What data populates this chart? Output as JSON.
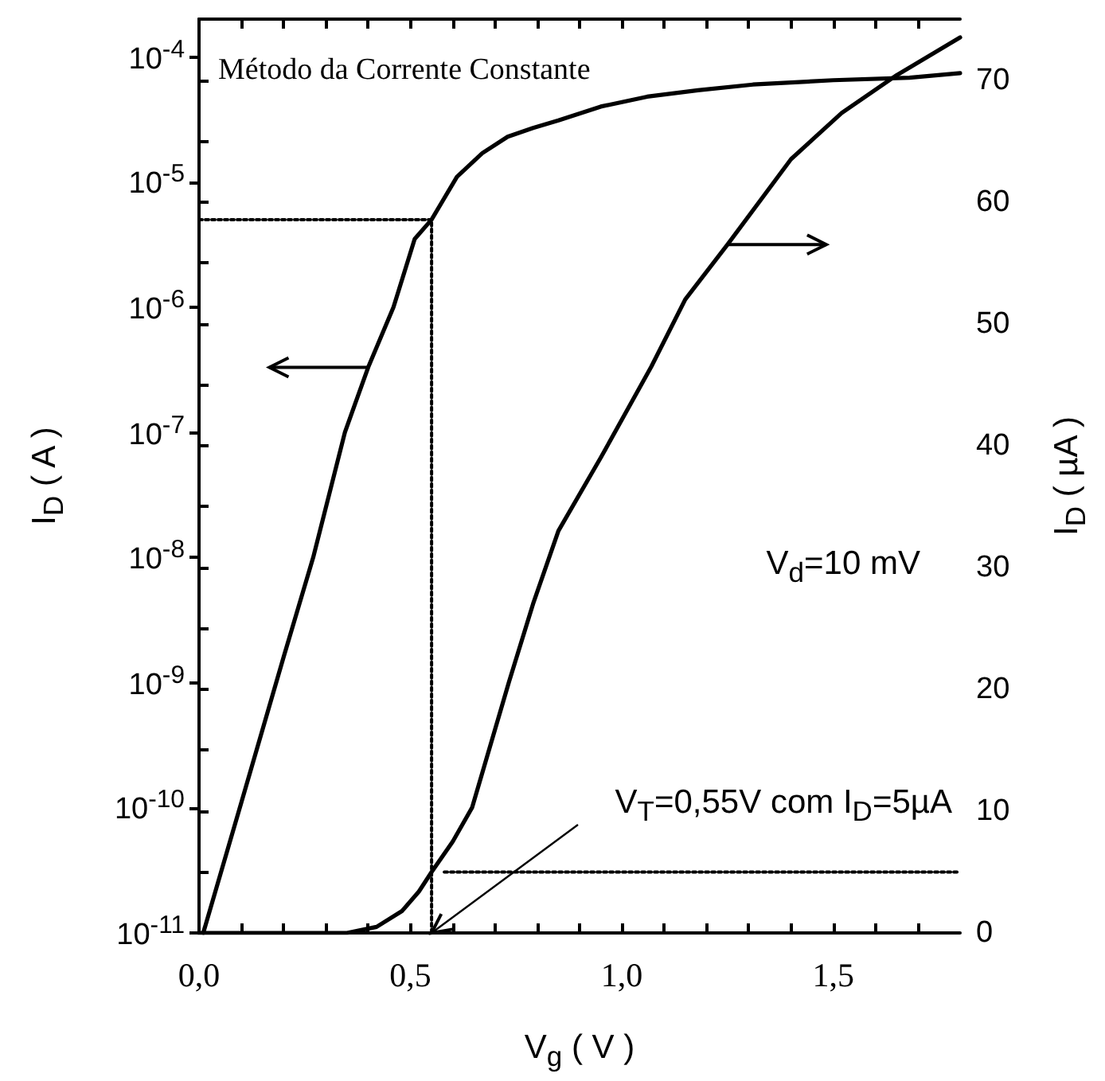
{
  "chart_data": {
    "type": "line",
    "xlabel": "V$_{g}$ ( V )",
    "ylabel": "I$_{D}$ ( A )",
    "y2label": "I$_{D}$ ( µA )",
    "annotations": [
      "Método da Corrente Constante",
      "V$_{d}$=10 mV",
      {
        "text": "V$_{T}$=0,55V com I$_{D}$=5µA",
        "x": 0.55,
        "y": 1e-11
      }
    ],
    "xlim": [
      0,
      1.8
    ],
    "xticks": [
      {
        "value": 0,
        "label": "0,0"
      },
      {
        "value": 0.1,
        "label": null
      },
      {
        "value": 0.2,
        "label": null
      },
      {
        "value": 0.3,
        "label": null
      },
      {
        "value": 0.4,
        "label": null
      },
      {
        "value": 0.5,
        "label": "0,5"
      },
      {
        "value": 0.6,
        "label": null
      },
      {
        "value": 0.7,
        "label": null
      },
      {
        "value": 0.8,
        "label": null
      },
      {
        "value": 0.9,
        "label": null
      },
      {
        "value": 1.0,
        "label": "1,0"
      },
      {
        "value": 1.1,
        "label": null
      },
      {
        "value": 1.2,
        "label": null
      },
      {
        "value": 1.3,
        "label": null
      },
      {
        "value": 1.4,
        "label": null
      },
      {
        "value": 1.5,
        "label": "1,5"
      },
      {
        "value": 1.6,
        "label": null
      },
      {
        "value": 1.7,
        "label": null
      }
    ],
    "ylim": [
      1e-11,
      0.0002
    ],
    "log": "y",
    "yticks": [
      {
        "value": 1e-11,
        "label": "10$^{-11}$"
      },
      {
        "value": 1e-10,
        "label": "10$^{-10}$"
      },
      {
        "value": 1e-09,
        "label": "10$^{-9}$"
      },
      {
        "value": 1e-08,
        "label": "10$^{-8}$"
      },
      {
        "value": 1e-07,
        "label": "10$^{-7}$"
      },
      {
        "value": 1e-06,
        "label": "10$^{-6}$"
      },
      {
        "value": 1e-05,
        "label": "10$^{-5}$"
      },
      {
        "value": 0.0001,
        "label": "10$^{-4}$"
      }
    ],
    "y2lim": [
      0,
      75
    ],
    "y2ticks": [
      0,
      {
        "value": 5,
        "label": null
      },
      10,
      {
        "value": 15,
        "label": null
      },
      20,
      {
        "value": 25,
        "label": null
      },
      30,
      {
        "value": 35,
        "label": null
      },
      40,
      {
        "value": 45,
        "label": null
      },
      50,
      {
        "value": 55,
        "label": null
      },
      60,
      {
        "value": 65,
        "label": null
      },
      70
    ],
    "grid": false,
    "marker": "none",
    "series": [
      {
        "color": "#000000",
        "x": [
          0.01,
          0.1,
          0.2,
          0.27,
          0.345,
          0.4,
          0.46,
          0.51,
          0.55,
          0.61,
          0.67,
          0.73,
          0.79,
          0.85,
          0.95,
          1.06,
          1.18,
          1.31,
          1.5,
          1.68,
          1.8
        ],
        "values": [
          1e-11,
          1.1e-10,
          1.6e-09,
          1e-08,
          1e-07,
          3.3e-07,
          1e-06,
          3.5e-06,
          5e-06,
          1.1e-05,
          1.7e-05,
          2.3e-05,
          2.7e-05,
          3.1e-05,
          4e-05,
          4.8e-05,
          5.4e-05,
          6e-05,
          6.5e-05,
          6.8e-05,
          7.4e-05
        ]
      },
      {
        "color": "#000000",
        "axis": "y2",
        "x": [
          0,
          0.35,
          0.42,
          0.48,
          0.52,
          0.55,
          0.6,
          0.646,
          0.733,
          0.79,
          0.85,
          0.95,
          1.07,
          1.15,
          1.25,
          1.4,
          1.52,
          1.65,
          1.8
        ],
        "values": [
          0,
          0,
          0.5,
          1.8,
          3.4,
          5,
          7.5,
          10.3,
          20.6,
          27,
          33,
          39,
          46.5,
          52,
          56.5,
          63.5,
          67.3,
          70.4,
          73.5
        ]
      },
      {
        "color": "#000000",
        "line_style": "dotted",
        "x": [
          0,
          0.55,
          0.55
        ],
        "values": [
          5e-06,
          5e-06,
          1e-11
        ]
      },
      {
        "color": "#000000",
        "line_style": "dotted",
        "axis": "y2",
        "x": [
          0.58,
          1.8
        ],
        "values": [
          5,
          5
        ]
      }
    ]
  }
}
